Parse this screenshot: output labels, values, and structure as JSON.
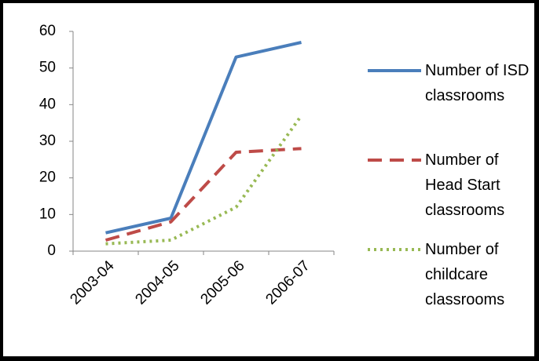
{
  "chart_data": {
    "type": "line",
    "categories": [
      "2003-04",
      "2004-05",
      "2005-06",
      "2006-07"
    ],
    "series": [
      {
        "name": "Number of ISD classrooms",
        "color": "#4a7ebb",
        "style": "solid",
        "values": [
          5,
          9,
          53,
          57
        ]
      },
      {
        "name": "Number of Head Start classrooms",
        "color": "#be4b48",
        "style": "dashed",
        "values": [
          3,
          8,
          27,
          28
        ]
      },
      {
        "name": "Number of childcare classrooms",
        "color": "#98b954",
        "style": "dotted",
        "values": [
          2,
          3,
          12,
          37
        ]
      }
    ],
    "ylim": [
      0,
      60
    ],
    "yticks": [
      0,
      10,
      20,
      30,
      40,
      50,
      60
    ],
    "grid": false,
    "legend": "right"
  }
}
